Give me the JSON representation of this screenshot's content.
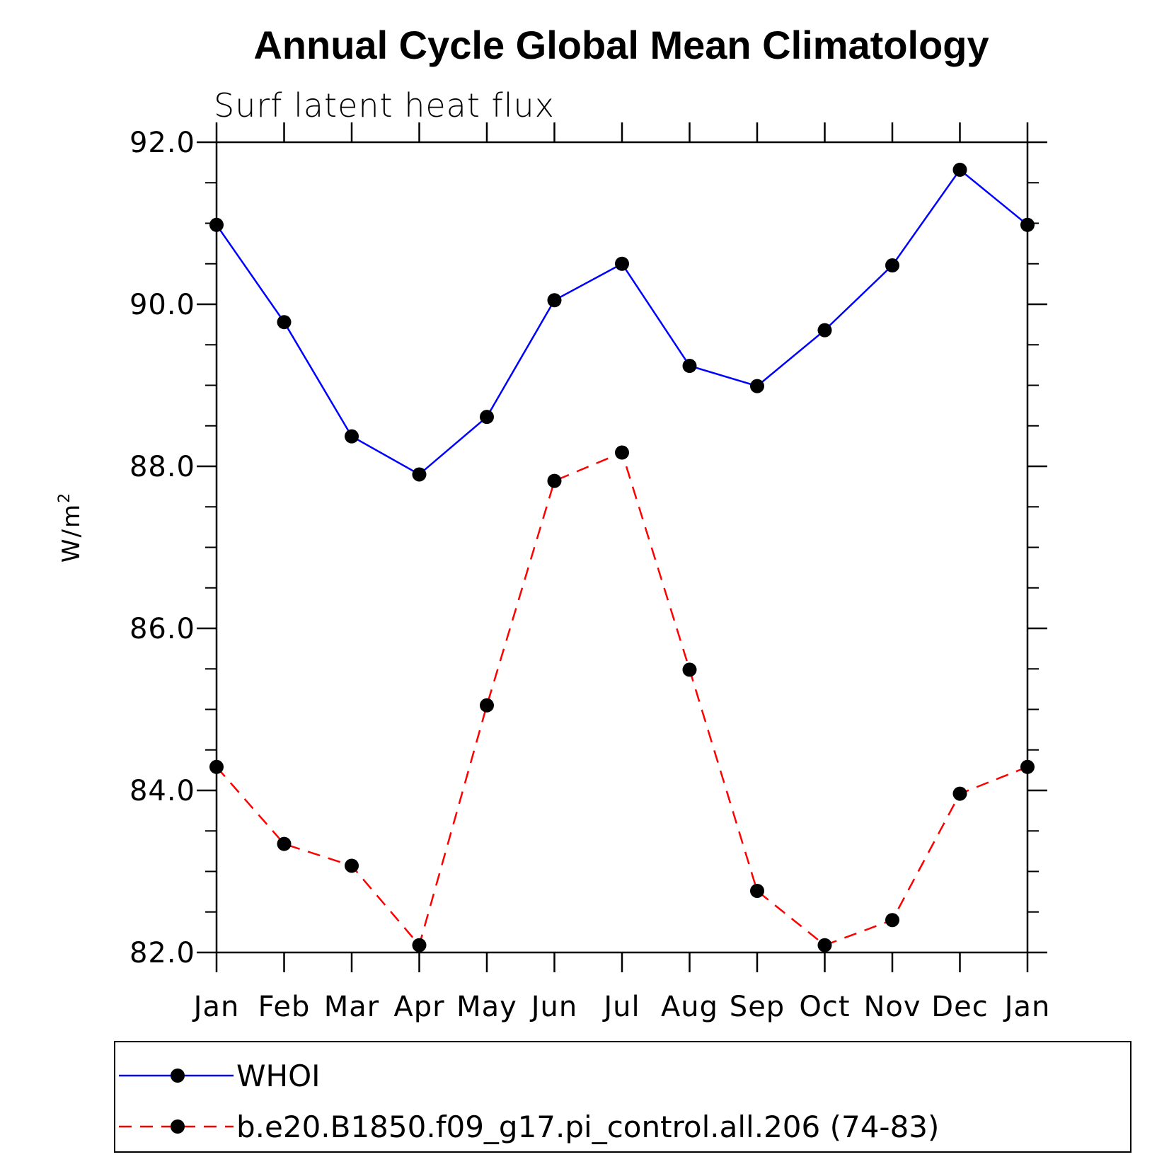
{
  "chart_data": {
    "type": "line",
    "title": "Annual Cycle Global Mean Climatology",
    "subtitle": "Surf latent heat flux",
    "ylabel_base": "W/m",
    "ylabel_sup": "2",
    "xlabel": "",
    "categories": [
      "Jan",
      "Feb",
      "Mar",
      "Apr",
      "May",
      "Jun",
      "Jul",
      "Aug",
      "Sep",
      "Oct",
      "Nov",
      "Dec",
      "Jan"
    ],
    "ylim": [
      82.0,
      92.0
    ],
    "yticks": [
      "82.0",
      "84.0",
      "86.0",
      "88.0",
      "90.0",
      "92.0"
    ],
    "ytick_values": [
      82,
      84,
      86,
      88,
      90,
      92
    ],
    "grid": false,
    "legend_position": "bottom",
    "series": [
      {
        "name": "WHOI",
        "color": "#0000ff",
        "dash": "solid",
        "values": [
          90.98,
          89.78,
          88.37,
          87.9,
          88.61,
          90.05,
          90.5,
          89.24,
          88.99,
          89.68,
          90.48,
          91.66,
          90.98
        ]
      },
      {
        "name": "b.e20.B1850.f09_g17.pi_control.all.206 (74-83)",
        "color": "#ff0000",
        "dash": "dashed",
        "values": [
          84.29,
          83.34,
          83.07,
          82.09,
          85.05,
          87.82,
          88.17,
          85.49,
          82.76,
          82.09,
          82.4,
          83.96,
          84.29
        ]
      }
    ]
  },
  "colors": {
    "axis": "#000000",
    "marker": "#000000"
  }
}
